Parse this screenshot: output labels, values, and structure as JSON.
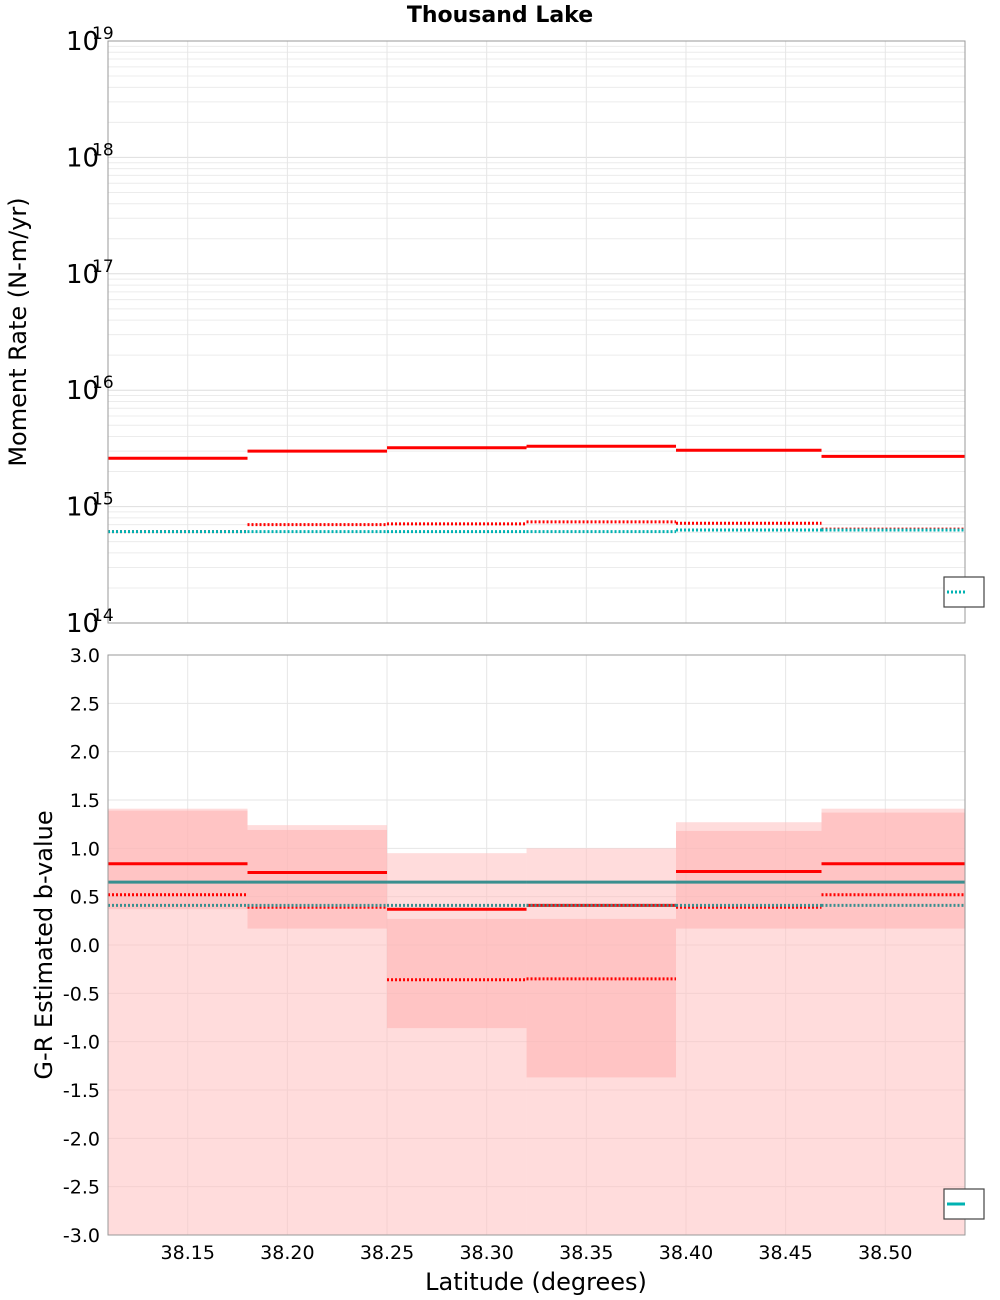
{
  "chart_data": [
    {
      "type": "line",
      "title": "Thousand Lake",
      "xlabel": "",
      "ylabel": "Moment Rate (N-m/yr)",
      "yscale": "log",
      "ylim": [
        100000000000000.0,
        1e+19
      ],
      "xlim": [
        38.11,
        38.54
      ],
      "y_ticks": [
        {
          "base": "10",
          "exp": "14",
          "value": 100000000000000.0
        },
        {
          "base": "10",
          "exp": "15",
          "value": 1000000000000000.0
        },
        {
          "base": "10",
          "exp": "16",
          "value": 1e+16
        },
        {
          "base": "10",
          "exp": "17",
          "value": 1e+17
        },
        {
          "base": "10",
          "exp": "18",
          "value": 1e+18
        },
        {
          "base": "10",
          "exp": "19",
          "value": 1e+19
        }
      ],
      "grid": true,
      "legend": "bottom-right",
      "bin_edges": [
        38.11,
        38.18,
        38.25,
        38.32,
        38.395,
        38.468,
        38.54
      ],
      "series": [
        {
          "color": "#ff0000",
          "style": "solid",
          "values": [
            2600000000000000.0,
            3000000000000000.0,
            3200000000000000.0,
            3300000000000000.0,
            3050000000000000.0,
            2700000000000000.0
          ]
        },
        {
          "color": "#ff0000",
          "style": "dotted",
          "values": [
            610000000000000.0,
            700000000000000.0,
            710000000000000.0,
            740000000000000.0,
            720000000000000.0,
            640000000000000.0
          ]
        },
        {
          "color": "#00b2b2",
          "style": "dotted",
          "values": [
            610000000000000.0,
            610000000000000.0,
            610000000000000.0,
            610000000000000.0,
            630000000000000.0,
            630000000000000.0
          ]
        }
      ]
    },
    {
      "type": "line",
      "title": "",
      "xlabel": "Latitude (degrees)",
      "ylabel": "G-R Estimated b-value",
      "ylim": [
        -3.0,
        3.0
      ],
      "xlim": [
        38.11,
        38.54
      ],
      "y_ticks": [
        "-3.0",
        "-2.5",
        "-2.0",
        "-1.5",
        "-1.0",
        "-0.5",
        "0.0",
        "0.5",
        "1.0",
        "1.5",
        "2.0",
        "2.5",
        "3.0"
      ],
      "x_ticks": [
        "38.15",
        "38.20",
        "38.25",
        "38.30",
        "38.35",
        "38.40",
        "38.45",
        "38.50"
      ],
      "grid": true,
      "legend": "bottom-right",
      "bin_edges": [
        38.11,
        38.18,
        38.25,
        38.32,
        38.395,
        38.468,
        38.54
      ],
      "bands": [
        {
          "color": "#ffc0c0",
          "opacity": 0.55,
          "low": [
            -3.0,
            -3.0,
            -3.0,
            -3.0,
            -3.0,
            -3.0
          ],
          "high": [
            1.41,
            1.24,
            0.95,
            1.0,
            1.27,
            1.41
          ]
        },
        {
          "color": "#ffb0b0",
          "opacity": 0.55,
          "low": [
            0.37,
            0.17,
            -0.86,
            -1.37,
            0.17,
            0.17
          ],
          "high": [
            1.39,
            1.19,
            0.27,
            0.27,
            1.18,
            1.37
          ]
        }
      ],
      "series": [
        {
          "color": "#ff0000",
          "style": "solid",
          "values": [
            0.84,
            0.75,
            0.37,
            0.41,
            0.76,
            0.84
          ]
        },
        {
          "color": "#ff0000",
          "style": "dotted",
          "values": [
            0.52,
            0.39,
            -0.36,
            -0.35,
            0.39,
            0.52
          ]
        },
        {
          "color": "#3a8f8f",
          "style": "solid",
          "values": [
            0.65,
            0.65,
            0.65,
            0.65,
            0.65,
            0.65
          ]
        },
        {
          "color": "#3a8f8f",
          "style": "dotted",
          "values": [
            0.41,
            0.41,
            0.41,
            0.41,
            0.41,
            0.41
          ]
        }
      ]
    }
  ],
  "legend_swatches": [
    {
      "color": "#00b2b2",
      "style": "dotted"
    },
    {
      "color": "#00b2b2",
      "style": "solid"
    }
  ]
}
